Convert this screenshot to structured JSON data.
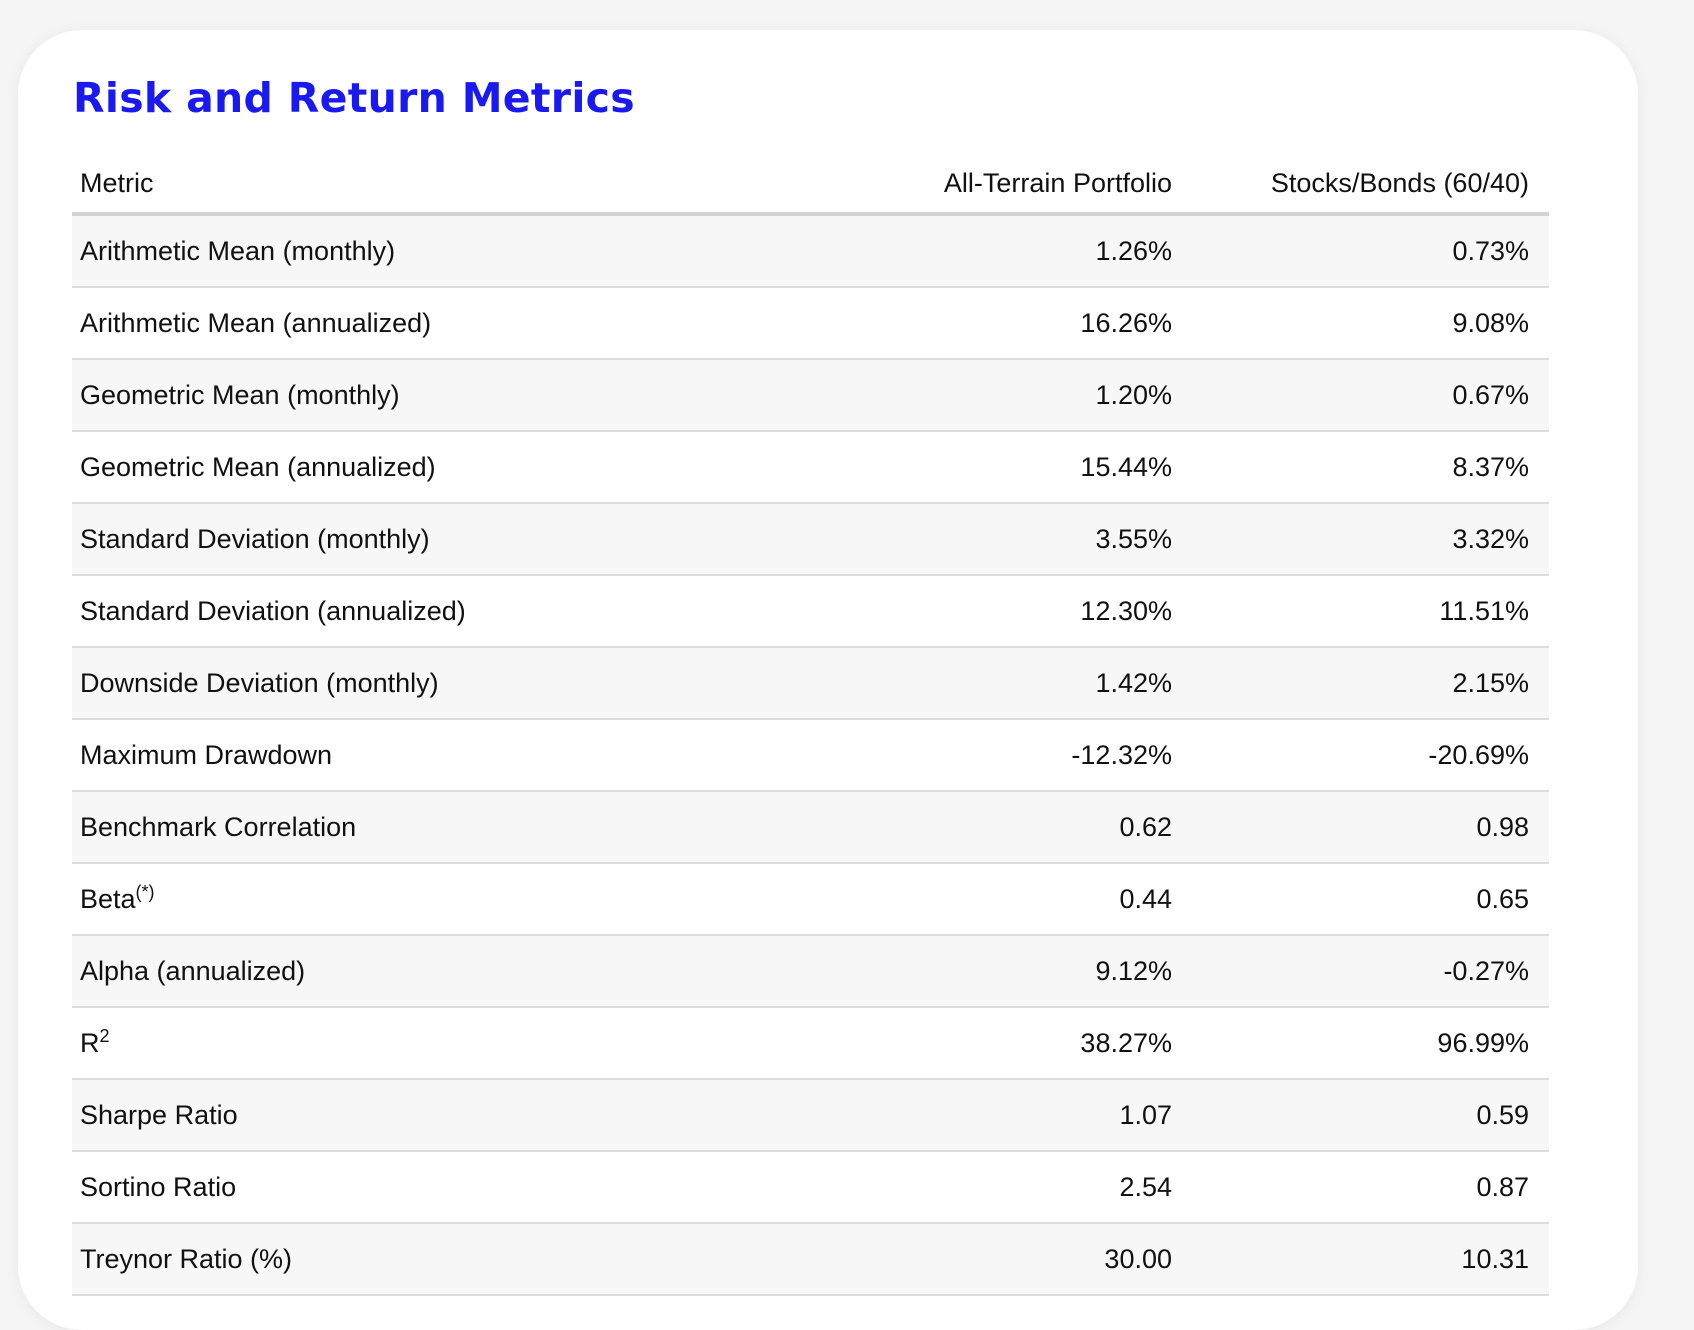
{
  "title": "Risk and Return Metrics",
  "table": {
    "headers": {
      "metric": "Metric",
      "col1": "All-Terrain Portfolio",
      "col2": "Stocks/Bonds (60/40)"
    },
    "rows": [
      {
        "name": "Arithmetic Mean (monthly)",
        "sup": "",
        "col1": "1.26%",
        "col2": "0.73%"
      },
      {
        "name": "Arithmetic Mean (annualized)",
        "sup": "",
        "col1": "16.26%",
        "col2": "9.08%"
      },
      {
        "name": "Geometric Mean (monthly)",
        "sup": "",
        "col1": "1.20%",
        "col2": "0.67%"
      },
      {
        "name": "Geometric Mean (annualized)",
        "sup": "",
        "col1": "15.44%",
        "col2": "8.37%"
      },
      {
        "name": "Standard Deviation (monthly)",
        "sup": "",
        "col1": "3.55%",
        "col2": "3.32%"
      },
      {
        "name": "Standard Deviation (annualized)",
        "sup": "",
        "col1": "12.30%",
        "col2": "11.51%"
      },
      {
        "name": "Downside Deviation (monthly)",
        "sup": "",
        "col1": "1.42%",
        "col2": "2.15%"
      },
      {
        "name": "Maximum Drawdown",
        "sup": "",
        "col1": "-12.32%",
        "col2": "-20.69%"
      },
      {
        "name": "Benchmark Correlation",
        "sup": "",
        "col1": "0.62",
        "col2": "0.98"
      },
      {
        "name": "Beta",
        "sup": "(*)",
        "col1": "0.44",
        "col2": "0.65"
      },
      {
        "name": "Alpha (annualized)",
        "sup": "",
        "col1": "9.12%",
        "col2": "-0.27%"
      },
      {
        "name": "R",
        "sup": "2",
        "col1": "38.27%",
        "col2": "96.99%"
      },
      {
        "name": "Sharpe Ratio",
        "sup": "",
        "col1": "1.07",
        "col2": "0.59"
      },
      {
        "name": "Sortino Ratio",
        "sup": "",
        "col1": "2.54",
        "col2": "0.87"
      },
      {
        "name": "Treynor Ratio (%)",
        "sup": "",
        "col1": "30.00",
        "col2": "10.31"
      }
    ]
  }
}
